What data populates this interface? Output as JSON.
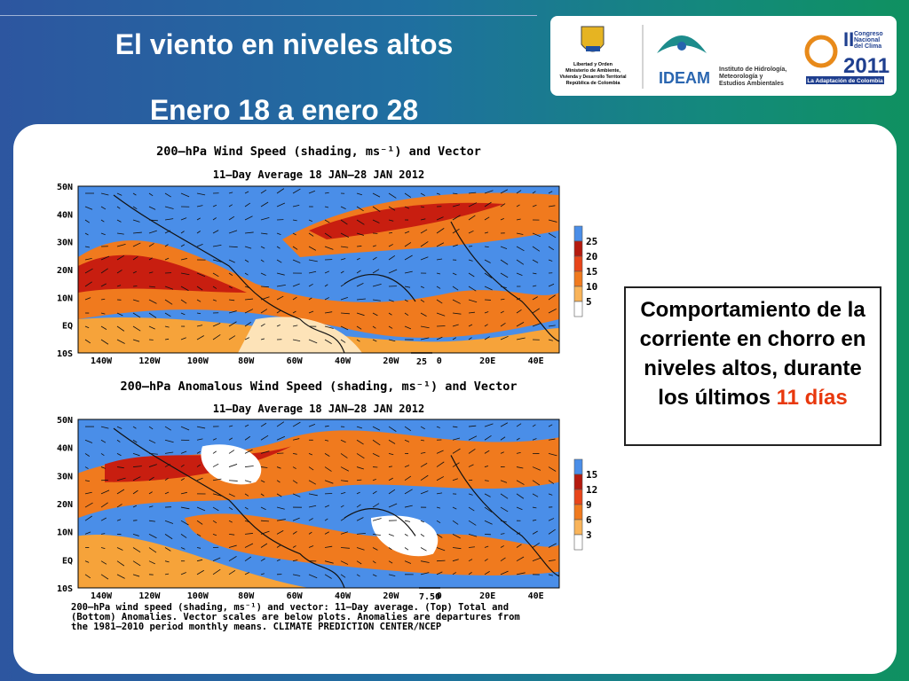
{
  "header": {
    "title": "El viento en niveles altos",
    "subtitle": "Enero 18 a enero 28"
  },
  "logos": {
    "ministry": [
      "Libertad y Orden",
      "Ministerio de Ambiente,",
      "Vivienda y Desarrollo Territorial",
      "República de Colombia"
    ],
    "ideam": {
      "name": "IDEAM",
      "full": [
        "Instituto de Hidrología,",
        "Meteorología y",
        "Estudios Ambientales"
      ]
    },
    "congress": {
      "lines": [
        "II",
        "Congreso",
        "Nacional",
        "del Clima",
        "2011"
      ],
      "tagline": "La Adaptación de Colombia"
    }
  },
  "maps": [
    {
      "title": "200–hPa Wind Speed (shading, ms⁻¹) and Vector",
      "subtitle": "11–Day Average 18 JAN–28 JAN 2012",
      "lat_labels": [
        "50N",
        "40N",
        "30N",
        "20N",
        "10N",
        "EQ",
        "10S"
      ],
      "lon_labels": [
        "140W",
        "120W",
        "100W",
        "80W",
        "60W",
        "40W",
        "20W",
        "0",
        "20E",
        "40E"
      ],
      "vector_scale": "25",
      "colorbar": [
        "25",
        "20",
        "15",
        "10",
        "5"
      ]
    },
    {
      "title": "200–hPa Anomalous Wind Speed (shading, ms⁻¹) and Vector",
      "subtitle": "11–Day Average 18 JAN–28 JAN 2012",
      "lat_labels": [
        "50N",
        "40N",
        "30N",
        "20N",
        "10N",
        "EQ",
        "10S"
      ],
      "lon_labels": [
        "140W",
        "120W",
        "100W",
        "80W",
        "60W",
        "40W",
        "20W",
        "0",
        "20E",
        "40E"
      ],
      "vector_scale": "7.50",
      "colorbar": [
        "15",
        "12",
        "9",
        "6",
        "3"
      ]
    }
  ],
  "caption": [
    "200–hPa wind speed (shading, ms⁻¹) and vector: 11–Day average. (Top) Total and",
    "(Bottom) Anomalies. Vector scales are below plots. Anomalies are departures from",
    "the 1981–2010 period monthly means. CLIMATE PREDICTION CENTER/NCEP"
  ],
  "textbox": {
    "text": "Comportamiento de la corriente en chorro en niveles altos, durante los últimos",
    "highlight": "11 días"
  }
}
